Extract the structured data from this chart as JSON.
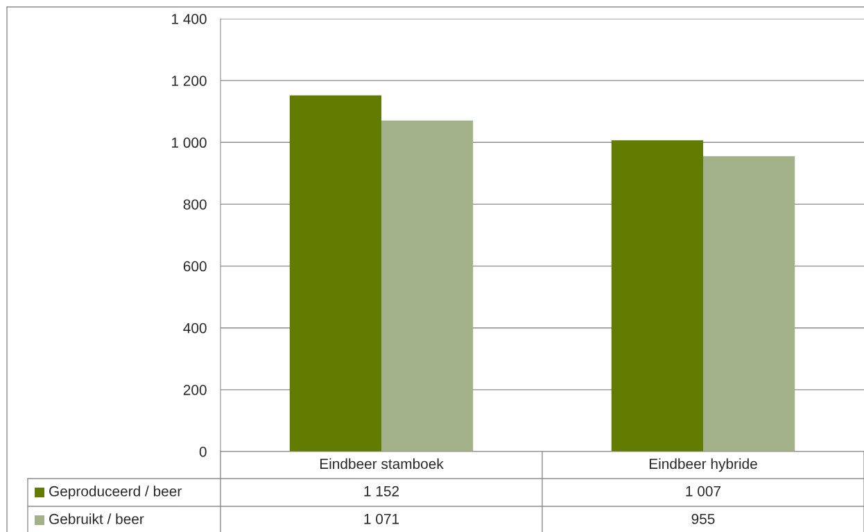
{
  "chart_data": {
    "type": "bar",
    "categories": [
      "Eindbeer stamboek",
      "Eindbeer hybride"
    ],
    "series": [
      {
        "name": "Geproduceerd / beer",
        "color": "#617c00",
        "values": [
          1152,
          1007
        ],
        "value_labels": [
          "1 152",
          "1 007"
        ]
      },
      {
        "name": "Gebruikt / beer",
        "color": "#a2b187",
        "values": [
          1071,
          955
        ],
        "value_labels": [
          "1 071",
          "955"
        ]
      }
    ],
    "ylim": [
      0,
      1400
    ],
    "yticks": [
      {
        "value": 0,
        "label": "0"
      },
      {
        "value": 200,
        "label": "200"
      },
      {
        "value": 400,
        "label": "400"
      },
      {
        "value": 600,
        "label": "600"
      },
      {
        "value": 800,
        "label": "800"
      },
      {
        "value": 1000,
        "label": "1 000"
      },
      {
        "value": 1200,
        "label": "1 200"
      },
      {
        "value": 1400,
        "label": "1 400"
      }
    ],
    "grid": "y",
    "legend": "bottom"
  }
}
